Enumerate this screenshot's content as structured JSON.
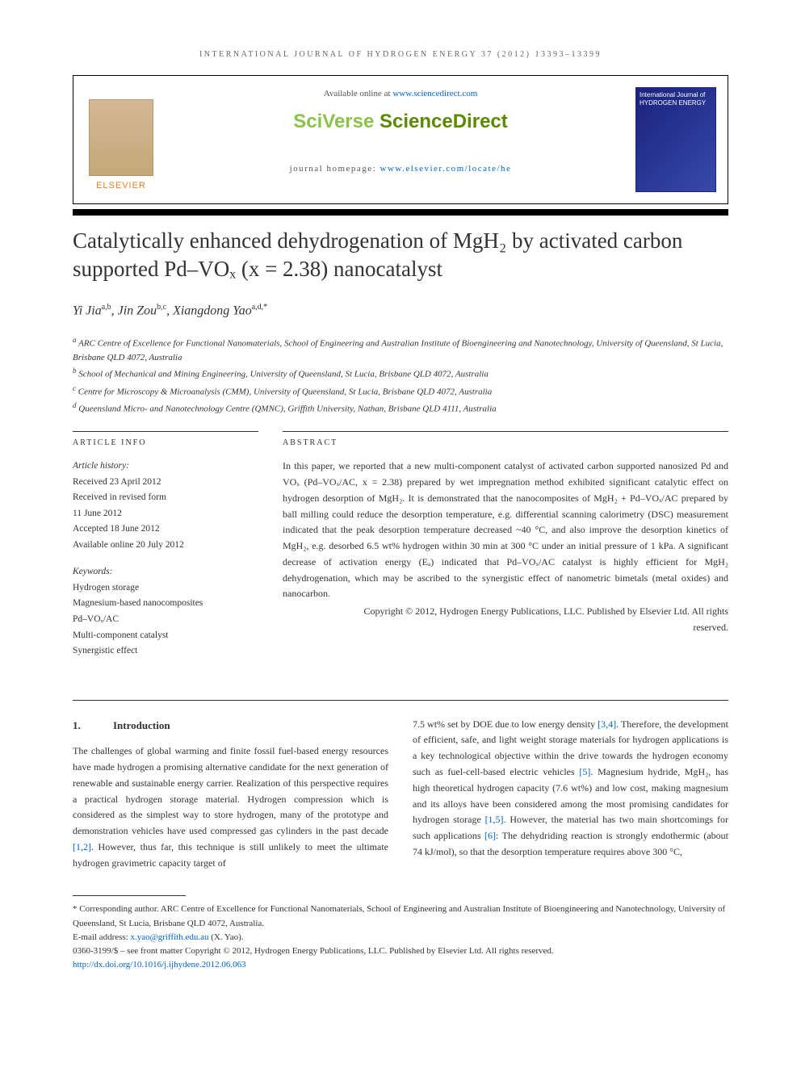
{
  "running_head": "INTERNATIONAL JOURNAL OF HYDROGEN ENERGY 37 (2012) 13393–13399",
  "header": {
    "available_text": "Available online at ",
    "available_link": "www.sciencedirect.com",
    "logo_sciverse": "SciVerse ",
    "logo_sciencedirect": "ScienceDirect",
    "homepage_label": "journal homepage: ",
    "homepage_link": "www.elsevier.com/locate/he",
    "elsevier_name": "ELSEVIER",
    "cover_title": "International Journal of HYDROGEN ENERGY"
  },
  "title": "Catalytically enhanced dehydrogenation of MgH₂ by activated carbon supported Pd–VOₓ (x = 2.38) nanocatalyst",
  "authors_html": "Yi Jia",
  "author1": {
    "name": "Yi Jia",
    "sup": "a,b"
  },
  "author2": {
    "name": "Jin Zou",
    "sup": "b,c"
  },
  "author3": {
    "name": "Xiangdong Yao",
    "sup": "a,d,*"
  },
  "affiliations": {
    "a": "ARC Centre of Excellence for Functional Nanomaterials, School of Engineering and Australian Institute of Bioengineering and Nanotechnology, University of Queensland, St Lucia, Brisbane QLD 4072, Australia",
    "b": "School of Mechanical and Mining Engineering, University of Queensland, St Lucia, Brisbane QLD 4072, Australia",
    "c": "Centre for Microscopy & Microanalysis (CMM), University of Queensland, St Lucia, Brisbane QLD 4072, Australia",
    "d": "Queensland Micro- and Nanotechnology Centre (QMNC), Griffith University, Nathan, Brisbane QLD 4111, Australia"
  },
  "info": {
    "label": "ARTICLE INFO",
    "history_head": "Article history:",
    "received": "Received 23 April 2012",
    "revised": "Received in revised form",
    "revised_date": "11 June 2012",
    "accepted": "Accepted 18 June 2012",
    "online": "Available online 20 July 2012",
    "keywords_head": "Keywords:",
    "kw1": "Hydrogen storage",
    "kw2": "Magnesium-based nanocomposites",
    "kw3": "Pd–VOₓ/AC",
    "kw4": "Multi-component catalyst",
    "kw5": "Synergistic effect"
  },
  "abstract": {
    "label": "ABSTRACT",
    "text": "In this paper, we reported that a new multi-component catalyst of activated carbon supported nanosized Pd and VOₓ (Pd–VOₓ/AC, x = 2.38) prepared by wet impregnation method exhibited significant catalytic effect on hydrogen desorption of MgH₂. It is demonstrated that the nanocomposites of MgH₂ + Pd–VOₓ/AC prepared by ball milling could reduce the desorption temperature, e.g. differential scanning calorimetry (DSC) measurement indicated that the peak desorption temperature decreased ~40 °C, and also improve the desorption kinetics of MgH₂, e.g. desorbed 6.5 wt% hydrogen within 30 min at 300 °C under an initial pressure of 1 kPa. A significant decrease of activation energy (Eₐ) indicated that Pd–VOₓ/AC catalyst is highly efficient for MgH₂ dehydrogenation, which may be ascribed to the synergistic effect of nanometric bimetals (metal oxides) and nanocarbon.",
    "copyright1": "Copyright © 2012, Hydrogen Energy Publications, LLC. Published by Elsevier Ltd. All rights",
    "copyright2": "reserved."
  },
  "intro": {
    "num": "1.",
    "heading": "Introduction",
    "col1_a": "The challenges of global warming and finite fossil fuel-based energy resources have made hydrogen a promising alternative candidate for the next generation of renewable and sustainable energy carrier. Realization of this perspective requires a practical hydrogen storage material. Hydrogen compression which is considered as the simplest way to store hydrogen, many of the prototype and demonstration vehicles have used compressed gas cylinders in the past decade ",
    "ref12": "[1,2]",
    "col1_b": ". However, thus far, this technique is still unlikely to meet the ultimate hydrogen gravimetric capacity target of",
    "col2_a": "7.5 wt% set by DOE due to low energy density ",
    "ref34": "[3,4]",
    "col2_b": ". Therefore, the development of efficient, safe, and light weight storage materials for hydrogen applications is a key technological objective within the drive towards the hydrogen economy such as fuel-cell-based electric vehicles ",
    "ref5": "[5]",
    "col2_c": ". Magnesium hydride, MgH₂, has high theoretical hydrogen capacity (7.6 wt%) and low cost, making magnesium and its alloys have been considered among the most promising candidates for hydrogen storage ",
    "ref15": "[1,5]",
    "col2_d": ". However, the material has two main shortcomings for such applications ",
    "ref6": "[6]",
    "col2_e": ": The dehydriding reaction is strongly endothermic (about 74 kJ/mol), so that the desorption temperature requires above 300 °C,"
  },
  "footnotes": {
    "corr": "* Corresponding author. ARC Centre of Excellence for Functional Nanomaterials, School of Engineering and Australian Institute of Bioengineering and Nanotechnology, University of Queensland, St Lucia, Brisbane QLD 4072, Australia.",
    "email_label": "E-mail address: ",
    "email": "x.yao@griffith.edu.au",
    "email_owner": " (X. Yao).",
    "issn": "0360-3199/$ – see front matter Copyright © 2012, Hydrogen Energy Publications, LLC. Published by Elsevier Ltd. All rights reserved.",
    "doi": "http://dx.doi.org/10.1016/j.ijhydene.2012.06.063"
  },
  "colors": {
    "link": "#0066cc",
    "elsevier_orange": "#e67e22",
    "sciverse_green": "#8bc34a",
    "sciencedirect_green": "#5b8a00",
    "cover_blue": "#283593",
    "text": "#333333",
    "rule": "#333333"
  },
  "typography": {
    "title_fontsize_pt": 20,
    "body_fontsize_pt": 9,
    "abstract_fontsize_pt": 9,
    "running_head_fontsize_pt": 7.5,
    "font_family": "Georgia / serif"
  }
}
